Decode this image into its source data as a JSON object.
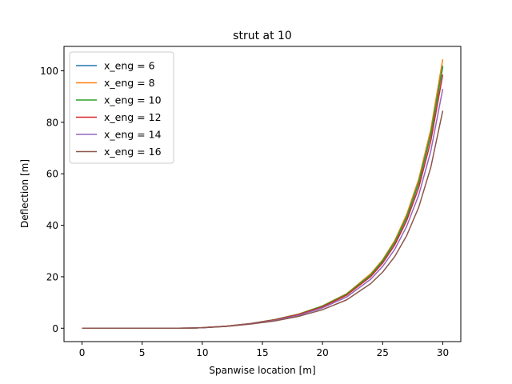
{
  "chart_data": {
    "type": "line",
    "title": "strut at 10",
    "xlabel": "Spanwise location [m]",
    "ylabel": "Deflection [m]",
    "xlim": [
      -1.5,
      31.5
    ],
    "ylim": [
      -5.2,
      109.5
    ],
    "xticks": [
      0,
      5,
      10,
      15,
      20,
      25,
      30
    ],
    "yticks": [
      0,
      20,
      40,
      60,
      80,
      100
    ],
    "grid": false,
    "legend_position": "top-left",
    "x": [
      0,
      2,
      4,
      6,
      8,
      9,
      10,
      12,
      14,
      16,
      18,
      20,
      22,
      24,
      25,
      26,
      27,
      28,
      29,
      30
    ],
    "series": [
      {
        "name": "x_eng = 6",
        "color": "#1f77b4",
        "values": [
          0,
          0,
          0,
          0,
          0,
          0.05,
          0.2,
          0.8,
          1.8,
          3.3,
          5.4,
          8.5,
          13.1,
          20.6,
          26.0,
          33.2,
          43.0,
          56.3,
          75.0,
          101.5
        ]
      },
      {
        "name": "x_eng = 8",
        "color": "#ff7f0e",
        "values": [
          0,
          0,
          0,
          0,
          0,
          0.05,
          0.2,
          0.8,
          1.8,
          3.3,
          5.5,
          8.7,
          13.4,
          21.1,
          26.6,
          34.0,
          44.2,
          57.9,
          77.1,
          104.5
        ]
      },
      {
        "name": "x_eng = 10",
        "color": "#2ca02c",
        "values": [
          0,
          0,
          0,
          0,
          0,
          0.05,
          0.2,
          0.8,
          1.8,
          3.3,
          5.4,
          8.6,
          13.2,
          20.7,
          26.2,
          33.4,
          43.3,
          56.7,
          75.5,
          102.0
        ]
      },
      {
        "name": "x_eng = 12",
        "color": "#d62728",
        "values": [
          0,
          0,
          0,
          0,
          0,
          0.05,
          0.2,
          0.8,
          1.8,
          3.2,
          5.3,
          8.3,
          12.8,
          20.0,
          25.3,
          32.3,
          41.8,
          54.6,
          72.6,
          98.5
        ]
      },
      {
        "name": "x_eng = 14",
        "color": "#9467bd",
        "values": [
          0,
          0,
          0,
          0,
          0,
          0.05,
          0.2,
          0.7,
          1.7,
          3.0,
          5.0,
          7.9,
          12.1,
          19.0,
          24.0,
          30.6,
          39.6,
          51.7,
          68.7,
          93.0
        ]
      },
      {
        "name": "x_eng = 16",
        "color": "#8c564b",
        "values": [
          0,
          0,
          0,
          0,
          0,
          0.05,
          0.2,
          0.7,
          1.6,
          2.8,
          4.6,
          7.2,
          11.0,
          17.3,
          21.8,
          27.8,
          36.0,
          47.0,
          62.4,
          84.5
        ]
      }
    ]
  }
}
